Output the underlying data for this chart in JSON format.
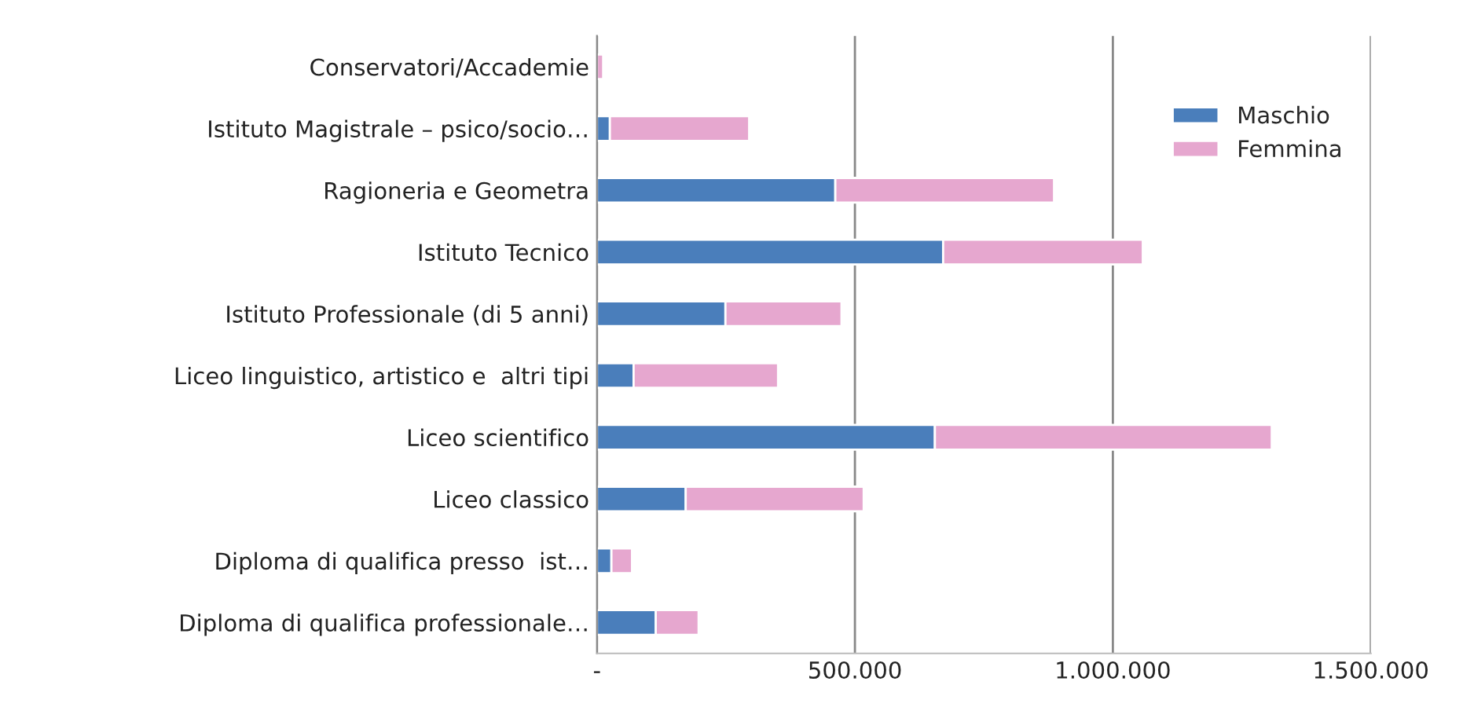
{
  "chart_data": {
    "type": "bar",
    "orientation": "horizontal",
    "stacked": true,
    "categories": [
      "Conservatori/Accademie",
      "Istituto Magistrale – psico/socio…",
      "Ragioneria e Geometra",
      "Istituto Tecnico",
      "Istituto Professionale (di 5 anni)",
      "Liceo linguistico, artistico e  altri tipi",
      "Liceo scientifico",
      "Liceo classico",
      "Diploma di qualifica presso  ist…",
      "Diploma di qualifica professionale…"
    ],
    "series": [
      {
        "name": "Maschio",
        "color": "#4a7ebb",
        "values": [
          null,
          25000,
          462000,
          671000,
          249000,
          71000,
          655000,
          172000,
          28000,
          114000
        ]
      },
      {
        "name": "Femmina",
        "color": "#e6a7cf",
        "values": [
          12000,
          270000,
          424000,
          387000,
          225000,
          280000,
          653000,
          345000,
          40000,
          83000
        ]
      }
    ],
    "xlim": [
      0,
      1500000
    ],
    "xticks": [
      {
        "value": 0,
        "label": "-"
      },
      {
        "value": 500000,
        "label": "500.000"
      },
      {
        "value": 1000000,
        "label": "1.000.000"
      },
      {
        "value": 1500000,
        "label": "1.500.000"
      }
    ],
    "grid": "x",
    "legend": "top right"
  }
}
